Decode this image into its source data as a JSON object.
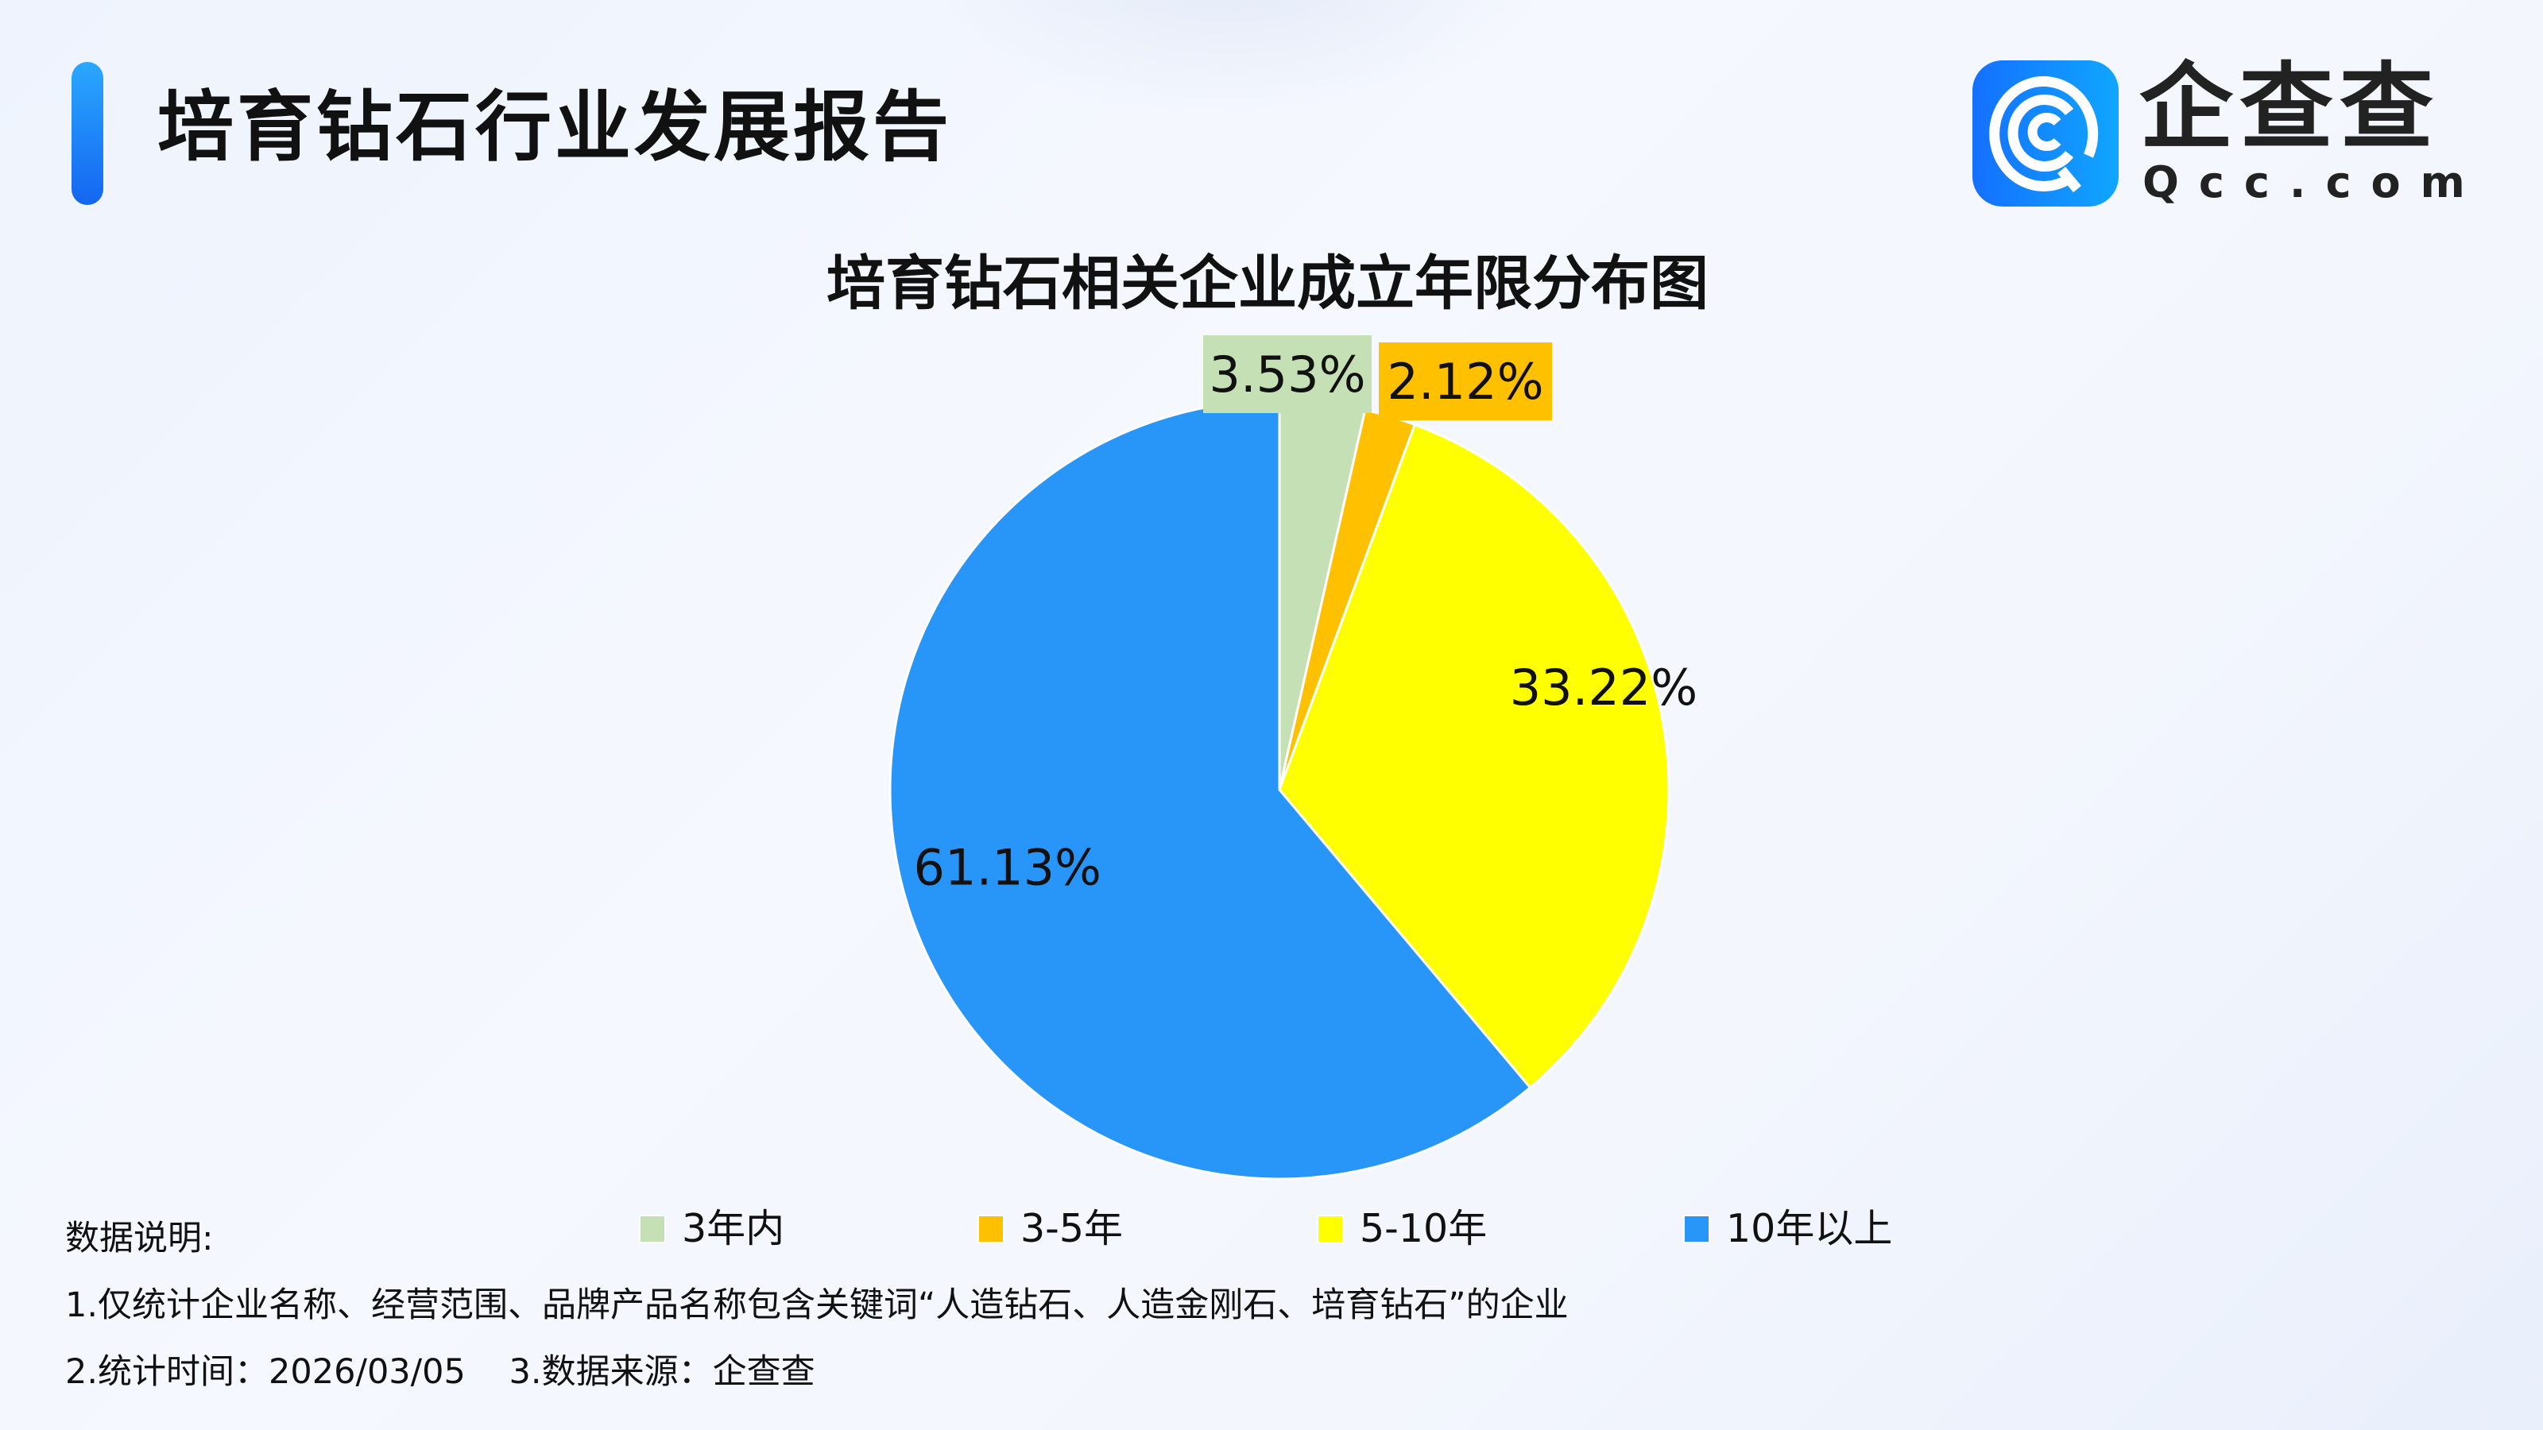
{
  "header": {
    "title": "培育钻石行业发展报告"
  },
  "logo": {
    "name_cn": "企查查",
    "name_en": "Qcc.com"
  },
  "chart_data": {
    "type": "pie",
    "title": "培育钻石相关企业成立年限分布图",
    "start_angle": "12 o'clock, clockwise",
    "legend_position": "bottom",
    "categories": [
      "3年内",
      "3-5年",
      "5-10年",
      "10年以上"
    ],
    "values": [
      3.53,
      2.12,
      33.22,
      61.13
    ],
    "labels": [
      "3.53%",
      "2.12%",
      "33.22%",
      "61.13%"
    ],
    "colors": [
      "#c5e0b4",
      "#ffc000",
      "#ffff00",
      "#2896f8"
    ]
  },
  "notes": {
    "heading": "数据说明:",
    "line1": "1.仅统计企业名称、经营范围、品牌产品名称包含关键词“人造钻石、人造金刚石、培育钻石”的企业",
    "line2": "2.统计时间：2026/03/05    3.数据来源：企查查"
  }
}
